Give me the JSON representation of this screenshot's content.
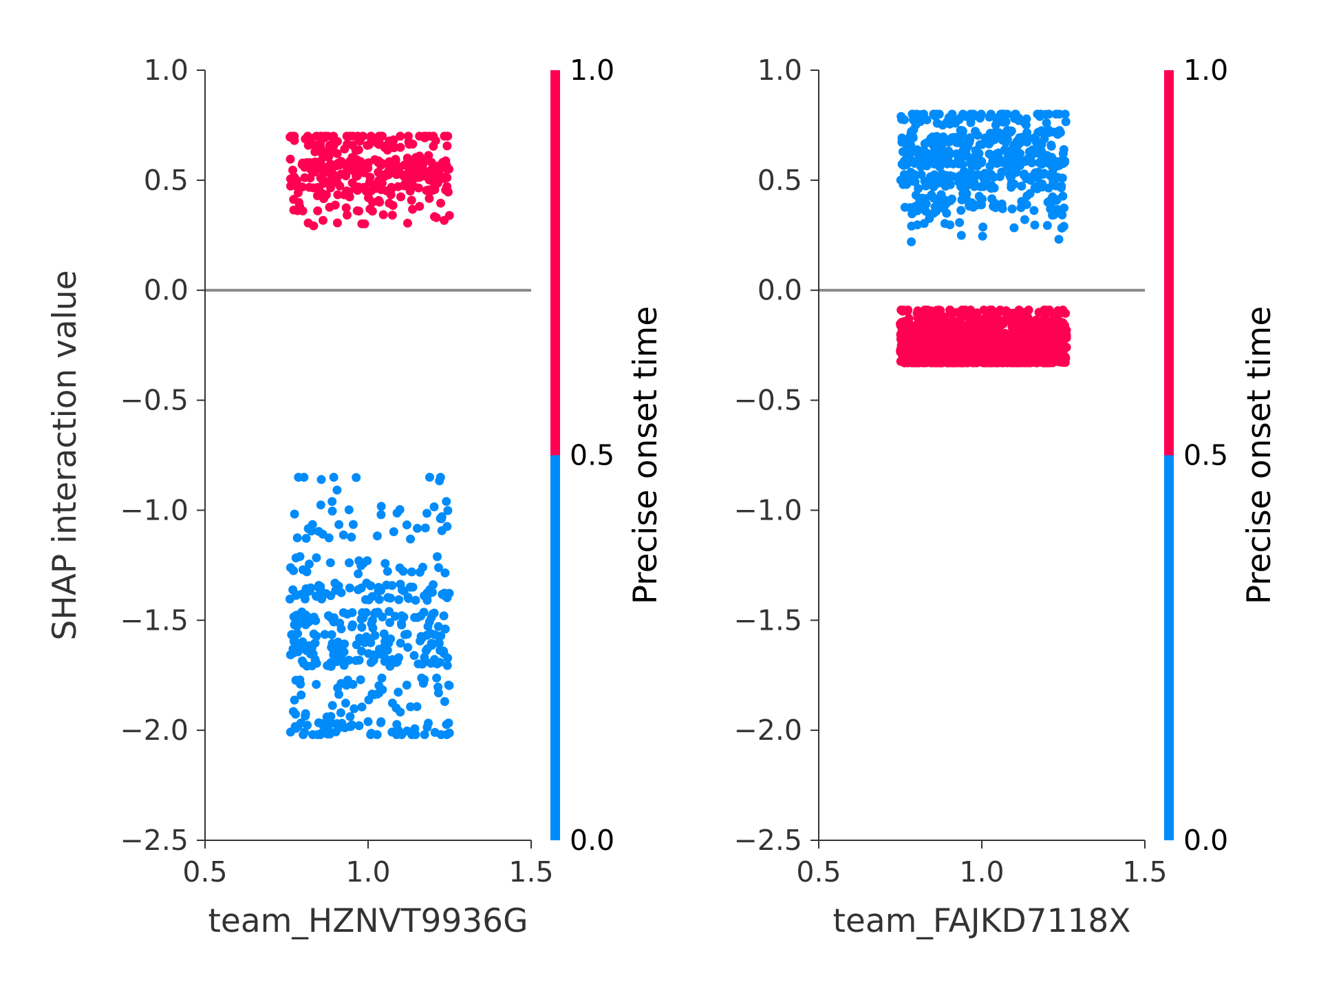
{
  "chart_data": [
    {
      "type": "scatter",
      "xlabel": "team_HZNVT9936G",
      "ylabel": "SHAP interaction value",
      "xlim": [
        0.5,
        1.5
      ],
      "ylim": [
        -2.5,
        1.0
      ],
      "x_ticks": [
        "0.5",
        "1.0",
        "1.5"
      ],
      "y_ticks": [
        "1.0",
        "0.5",
        "0.0",
        "−0.5",
        "−1.0",
        "−1.5",
        "−2.0",
        "−2.5"
      ],
      "zero_line": true,
      "grid": false,
      "colorbar": {
        "label": "Precise onset time",
        "ticks": [
          "1.0",
          "0.5",
          "0.0"
        ],
        "low_color": "#008bfb",
        "high_color": "#ff0052"
      },
      "clusters": [
        {
          "color_value": 1.0,
          "x_range": [
            0.76,
            1.25
          ],
          "y_range": [
            0.28,
            0.7
          ],
          "y_density": [
            [
              0.69,
              0.18
            ],
            [
              0.62,
              0.12
            ],
            [
              0.55,
              0.35
            ],
            [
              0.48,
              0.2
            ],
            [
              0.4,
              0.1
            ],
            [
              0.33,
              0.05
            ]
          ],
          "count": 330
        },
        {
          "color_value": 0.0,
          "x_range": [
            0.76,
            1.25
          ],
          "y_range": [
            -2.02,
            -0.85
          ],
          "y_density": [
            [
              -0.87,
              0.03
            ],
            [
              -1.0,
              0.04
            ],
            [
              -1.1,
              0.05
            ],
            [
              -1.25,
              0.08
            ],
            [
              -1.37,
              0.14
            ],
            [
              -1.5,
              0.12
            ],
            [
              -1.6,
              0.12
            ],
            [
              -1.67,
              0.14
            ],
            [
              -1.8,
              0.08
            ],
            [
              -1.9,
              0.06
            ],
            [
              -2.0,
              0.14
            ]
          ],
          "count": 420
        }
      ]
    },
    {
      "type": "scatter",
      "xlabel": "team_FAJKD7118X",
      "ylabel": "",
      "xlim": [
        0.5,
        1.5
      ],
      "ylim": [
        -2.5,
        1.0
      ],
      "x_ticks": [
        "0.5",
        "1.0",
        "1.5"
      ],
      "y_ticks": [
        "1.0",
        "0.5",
        "0.0",
        "−0.5",
        "−1.0",
        "−1.5",
        "−2.0",
        "−2.5"
      ],
      "zero_line": true,
      "grid": false,
      "colorbar": {
        "label": "Precise onset time",
        "ticks": [
          "1.0",
          "0.5",
          "0.0"
        ],
        "low_color": "#008bfb",
        "high_color": "#ff0052"
      },
      "clusters": [
        {
          "color_value": 0.0,
          "x_range": [
            0.75,
            1.26
          ],
          "y_range": [
            0.22,
            0.8
          ],
          "y_density": [
            [
              0.79,
              0.12
            ],
            [
              0.69,
              0.2
            ],
            [
              0.6,
              0.28
            ],
            [
              0.5,
              0.22
            ],
            [
              0.4,
              0.12
            ],
            [
              0.32,
              0.04
            ],
            [
              0.23,
              0.02
            ]
          ],
          "count": 520
        },
        {
          "color_value": 1.0,
          "x_range": [
            0.75,
            1.26
          ],
          "y_range": [
            -0.33,
            -0.09
          ],
          "y_density": [
            [
              -0.12,
              0.08
            ],
            [
              -0.18,
              0.2
            ],
            [
              -0.24,
              0.3
            ],
            [
              -0.3,
              0.42
            ]
          ],
          "count": 1500
        }
      ]
    }
  ]
}
